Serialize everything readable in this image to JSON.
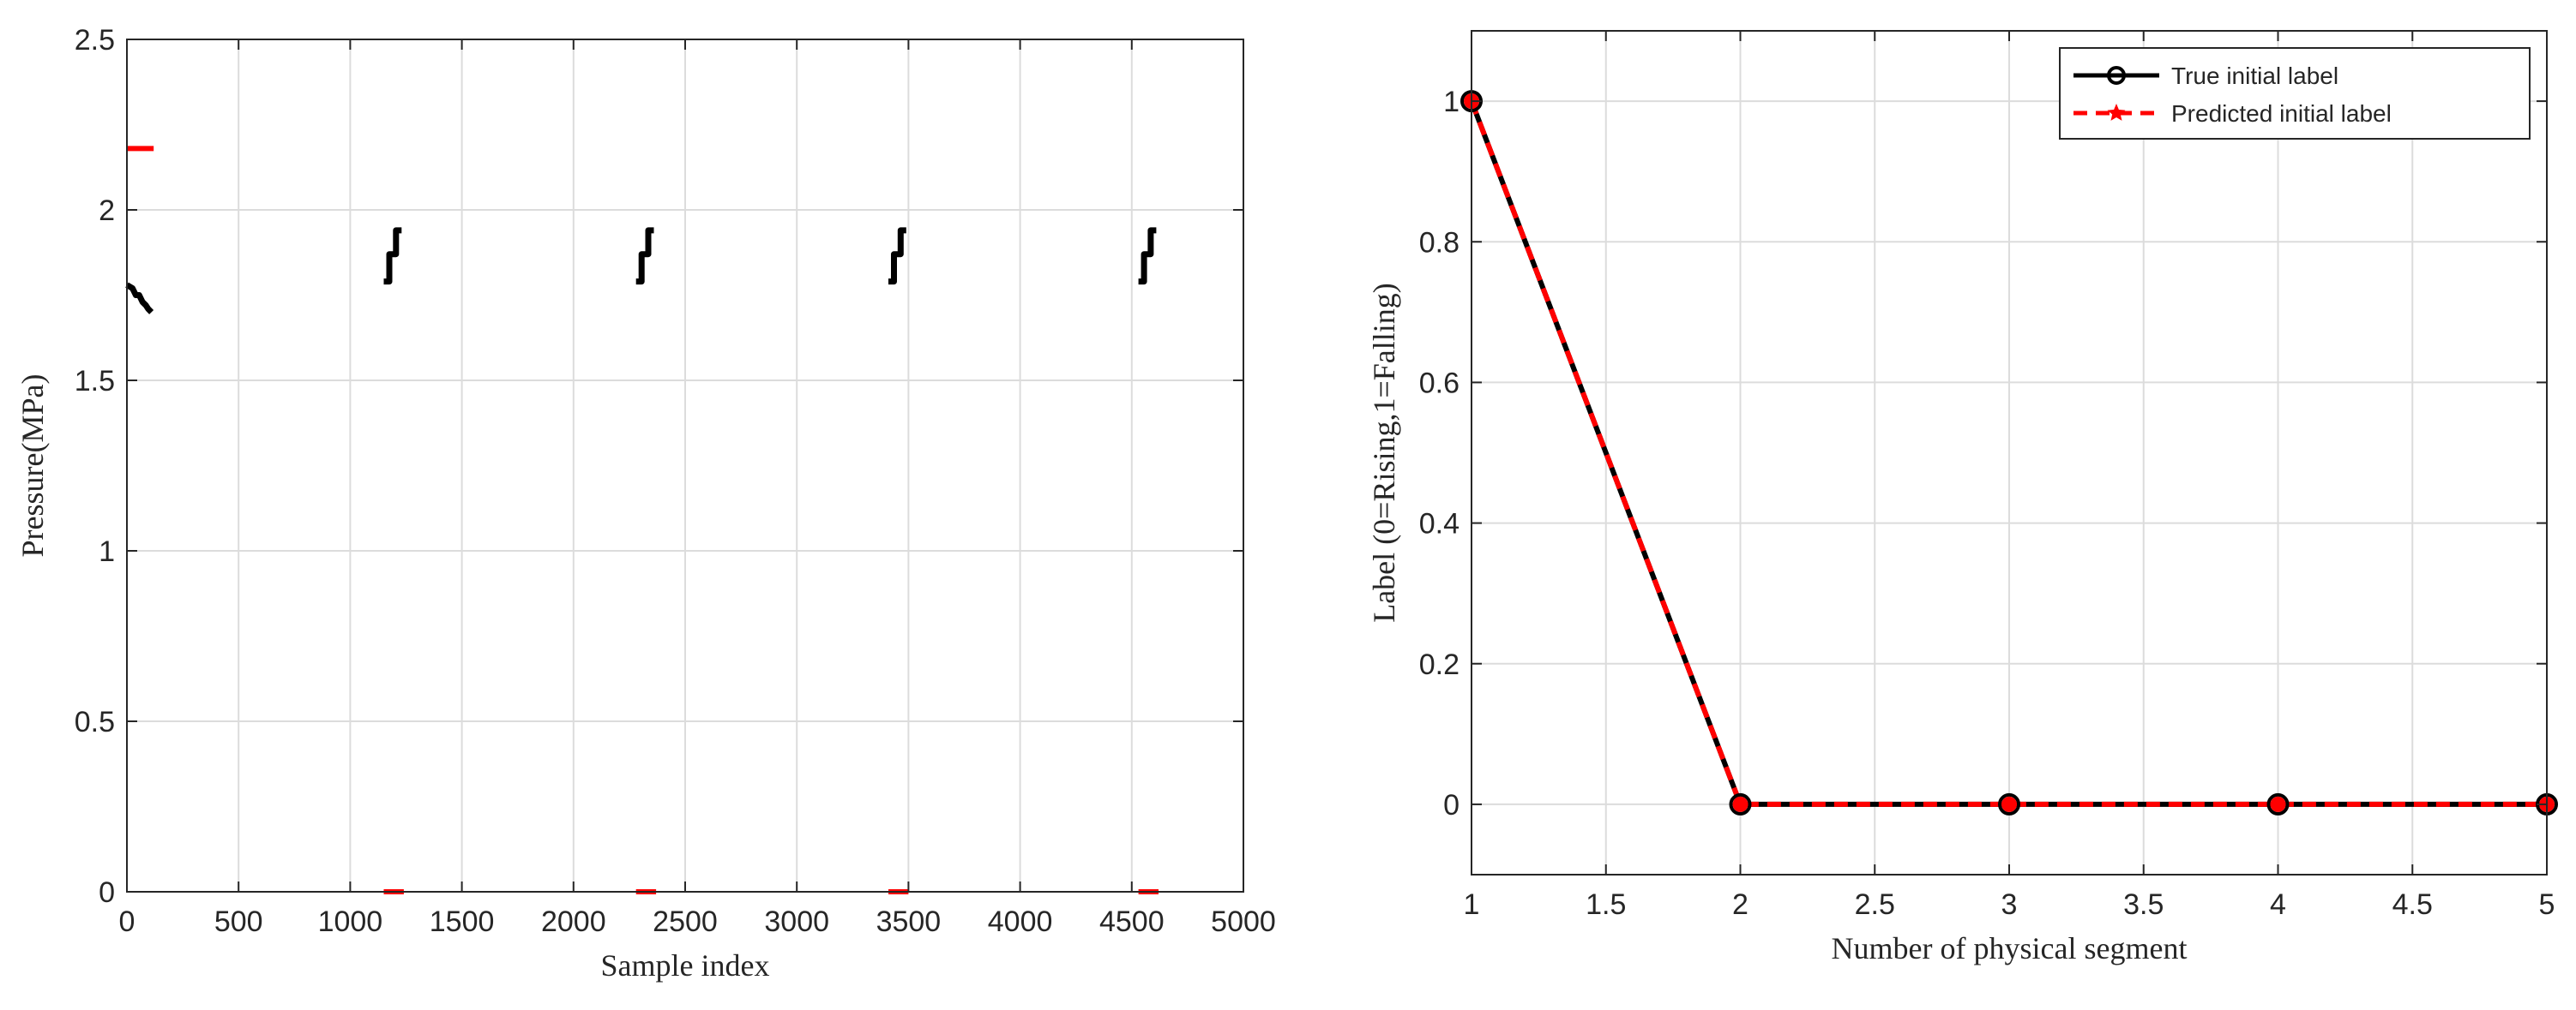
{
  "chart_data": [
    {
      "type": "line",
      "xlabel": "Sample index",
      "ylabel": "Pressure(MPa)",
      "xlim": [
        0,
        5000
      ],
      "ylim": [
        0,
        2.5
      ],
      "xticks": [
        "0",
        "500",
        "1000",
        "1500",
        "2000",
        "2500",
        "3000",
        "3500",
        "4000",
        "4500",
        "5000"
      ],
      "yticks": [
        "0",
        "0.5",
        "1",
        "1.5",
        "2",
        "2.5"
      ],
      "grid": true,
      "series": [
        {
          "color": "#000000",
          "style": "solid",
          "segments": [
            [
              [
                0,
                1.78
              ],
              [
                25,
                1.77
              ],
              [
                40,
                1.75
              ],
              [
                55,
                1.75
              ],
              [
                70,
                1.73
              ],
              [
                85,
                1.72
              ],
              [
                95,
                1.71
              ],
              [
                110,
                1.7
              ]
            ],
            [
              [
                1150,
                1.79
              ],
              [
                1175,
                1.79
              ],
              [
                1175,
                1.87
              ],
              [
                1205,
                1.87
              ],
              [
                1205,
                1.94
              ],
              [
                1230,
                1.94
              ]
            ],
            [
              [
                2280,
                1.79
              ],
              [
                2305,
                1.79
              ],
              [
                2305,
                1.87
              ],
              [
                2335,
                1.87
              ],
              [
                2335,
                1.94
              ],
              [
                2360,
                1.94
              ]
            ],
            [
              [
                3410,
                1.79
              ],
              [
                3435,
                1.79
              ],
              [
                3435,
                1.87
              ],
              [
                3465,
                1.87
              ],
              [
                3465,
                1.94
              ],
              [
                3490,
                1.94
              ]
            ],
            [
              [
                4530,
                1.79
              ],
              [
                4555,
                1.79
              ],
              [
                4555,
                1.87
              ],
              [
                4585,
                1.87
              ],
              [
                4585,
                1.94
              ],
              [
                4610,
                1.94
              ]
            ]
          ]
        },
        {
          "color": "#ff0000",
          "style": "solid",
          "segments": [
            [
              [
                0,
                2.18
              ],
              [
                120,
                2.18
              ]
            ],
            [
              [
                1150,
                0.0
              ],
              [
                1240,
                0.0
              ]
            ],
            [
              [
                2280,
                0.0
              ],
              [
                2370,
                0.0
              ]
            ],
            [
              [
                3410,
                0.0
              ],
              [
                3500,
                0.0
              ]
            ],
            [
              [
                4530,
                0.0
              ],
              [
                4620,
                0.0
              ]
            ]
          ]
        }
      ]
    },
    {
      "type": "line",
      "xlabel": "Number of physical segment",
      "ylabel": "Label (0=Rising,1=Falling)",
      "xlim": [
        1,
        5
      ],
      "ylim": [
        -0.1,
        1.1
      ],
      "xticks": [
        "1",
        "1.5",
        "2",
        "2.5",
        "3",
        "3.5",
        "4",
        "4.5",
        "5"
      ],
      "yticks": [
        "0",
        "0.2",
        "0.4",
        "0.6",
        "0.8",
        "1"
      ],
      "grid": true,
      "legend_position": "top-right",
      "series": [
        {
          "name": "True initial label",
          "color": "#000000",
          "style": "solid",
          "marker": "circle",
          "x": [
            1,
            2,
            3,
            4,
            5
          ],
          "values": [
            1,
            0,
            0,
            0,
            0
          ]
        },
        {
          "name": "Predicted initial label",
          "color": "#ff0000",
          "style": "dashed",
          "marker": "star",
          "x": [
            1,
            2,
            3,
            4,
            5
          ],
          "values": [
            1,
            0,
            0,
            0,
            0
          ]
        }
      ]
    }
  ]
}
